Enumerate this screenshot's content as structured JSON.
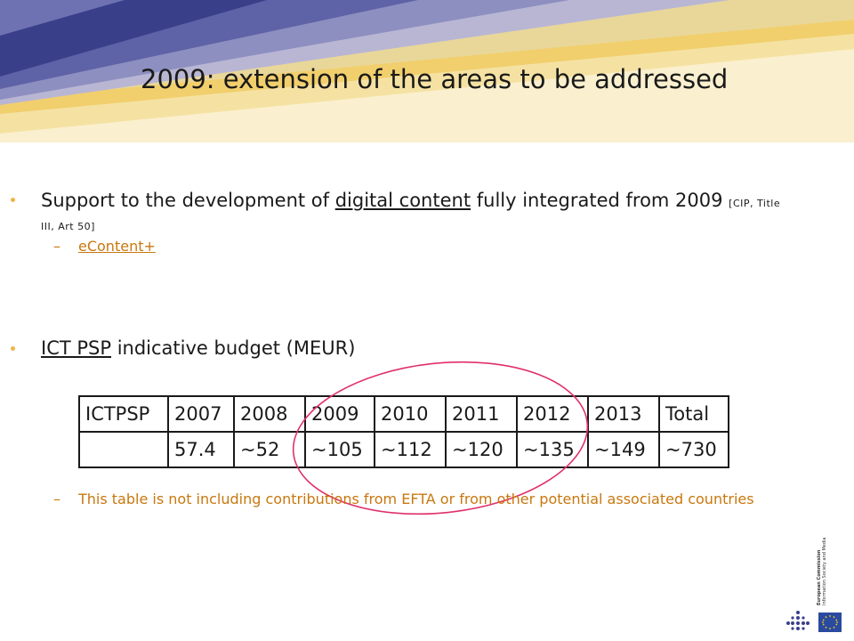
{
  "slide": {
    "title": "2009: extension of the areas to be addressed",
    "bullet1": {
      "pre": "Support to the development of ",
      "link": "digital content",
      "post": " fully integrated from 2009 ",
      "ref": "[CIP, Title III, Art 50]",
      "sub": {
        "dash": "–",
        "link": "eContent+"
      }
    },
    "bullet2": {
      "link": "ICT PSP",
      "post": " indicative budget (MEUR)"
    },
    "note": {
      "dash": "–",
      "text": "This table is not including contributions from EFTA or from other potential associated countries"
    }
  },
  "table": {
    "header": [
      "ICTPSP",
      "2007",
      "2008",
      "2009",
      "2010",
      "2011",
      "2012",
      "2013",
      "Total"
    ],
    "row": [
      "",
      "57.4",
      "~52",
      "~105",
      "~112",
      "~120",
      "~135",
      "~149",
      "~730"
    ]
  },
  "logo": {
    "line1": "European Commission",
    "line2": "Information Society and Media"
  },
  "colors": {
    "accent": "#f0b44a",
    "sub_text": "#c8780f",
    "oval": "#e0306a",
    "banner_navy": "#3a3f8a",
    "banner_gold": "#f1cf6d"
  }
}
